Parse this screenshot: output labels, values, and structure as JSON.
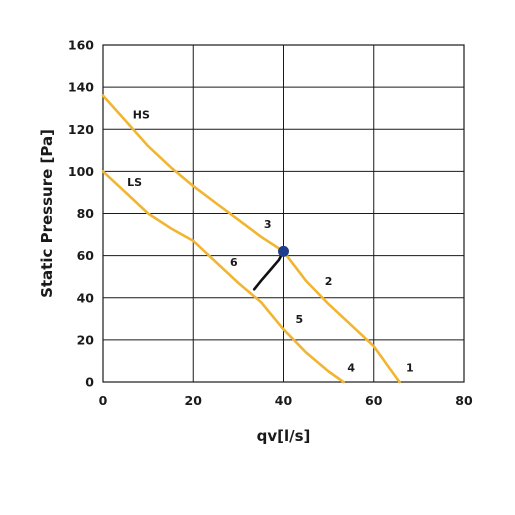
{
  "chart_data": {
    "type": "line",
    "title": "",
    "xlabel": "qv[l/s]",
    "ylabel": "Static Pressure [Pa]",
    "xlim": [
      0,
      80
    ],
    "ylim": [
      0,
      160
    ],
    "x_ticks": [
      0,
      20,
      40,
      60,
      80
    ],
    "y_ticks": [
      0,
      20,
      40,
      60,
      80,
      100,
      120,
      140,
      160
    ],
    "grid": true,
    "series_color": "#f2b531",
    "operating_color": "#1f3d8c",
    "series": [
      {
        "name": "HS",
        "x": [
          0,
          5,
          10,
          15,
          20,
          25,
          30,
          35,
          40,
          45,
          50,
          55,
          60,
          63,
          65.7
        ],
        "y": [
          136,
          124,
          112,
          102,
          93,
          85,
          77,
          69,
          62,
          48,
          37,
          27,
          17,
          8,
          0
        ]
      },
      {
        "name": "LS",
        "x": [
          0,
          5,
          10,
          15,
          20,
          25,
          30,
          35,
          40,
          45,
          50,
          53.3
        ],
        "y": [
          100,
          90,
          80,
          73,
          67,
          57,
          47,
          38,
          25,
          14,
          5,
          0
        ]
      }
    ],
    "system_curve": {
      "x": [
        33.5,
        35,
        37,
        39,
        40
      ],
      "y": [
        44,
        48,
        53,
        58,
        62
      ]
    },
    "operating_point": {
      "x": 40,
      "y": 62
    },
    "annotations": [
      {
        "text": "1",
        "x": 68,
        "y": 5
      },
      {
        "text": "2",
        "x": 50,
        "y": 46
      },
      {
        "text": "3",
        "x": 36.5,
        "y": 73
      },
      {
        "text": "4",
        "x": 55,
        "y": 5
      },
      {
        "text": "5",
        "x": 43.5,
        "y": 28
      },
      {
        "text": "6",
        "x": 29,
        "y": 55
      }
    ],
    "series_labels": [
      {
        "text": "HS",
        "x": 8.5,
        "y": 125
      },
      {
        "text": "LS",
        "x": 7,
        "y": 93
      }
    ]
  }
}
